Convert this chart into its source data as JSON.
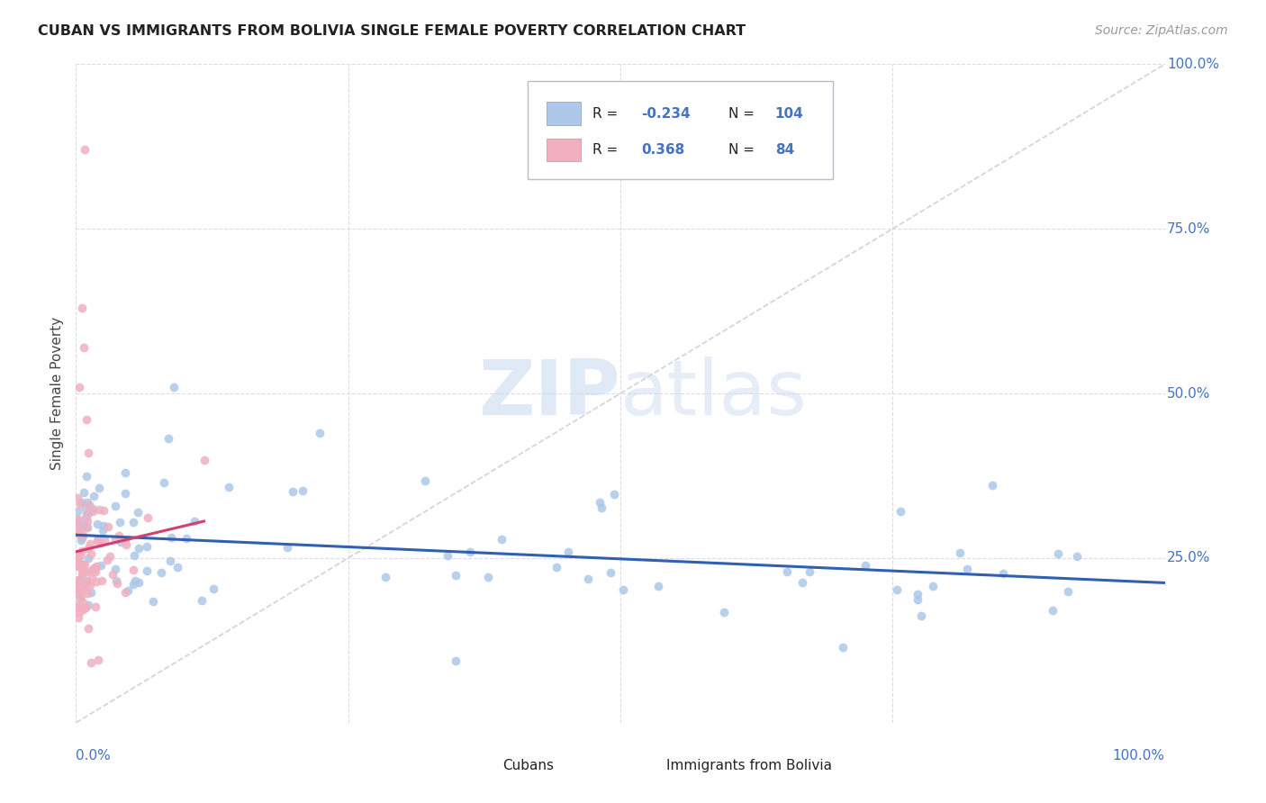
{
  "title": "CUBAN VS IMMIGRANTS FROM BOLIVIA SINGLE FEMALE POVERTY CORRELATION CHART",
  "source": "Source: ZipAtlas.com",
  "ylabel": "Single Female Poverty",
  "cubans_R": -0.234,
  "cubans_N": 104,
  "bolivia_R": 0.368,
  "bolivia_N": 84,
  "cubans_color": "#adc8e8",
  "bolivia_color": "#f0b0c0",
  "cubans_line_color": "#3060b0",
  "bolivia_line_color": "#d04070",
  "identity_line_color": "#c8c8c8",
  "watermark_zip": "ZIP",
  "watermark_atlas": "atlas",
  "background_color": "#ffffff",
  "grid_color": "#d8d8e8",
  "right_tick_color": "#4472c4",
  "bottom_tick_color": "#4472c4"
}
